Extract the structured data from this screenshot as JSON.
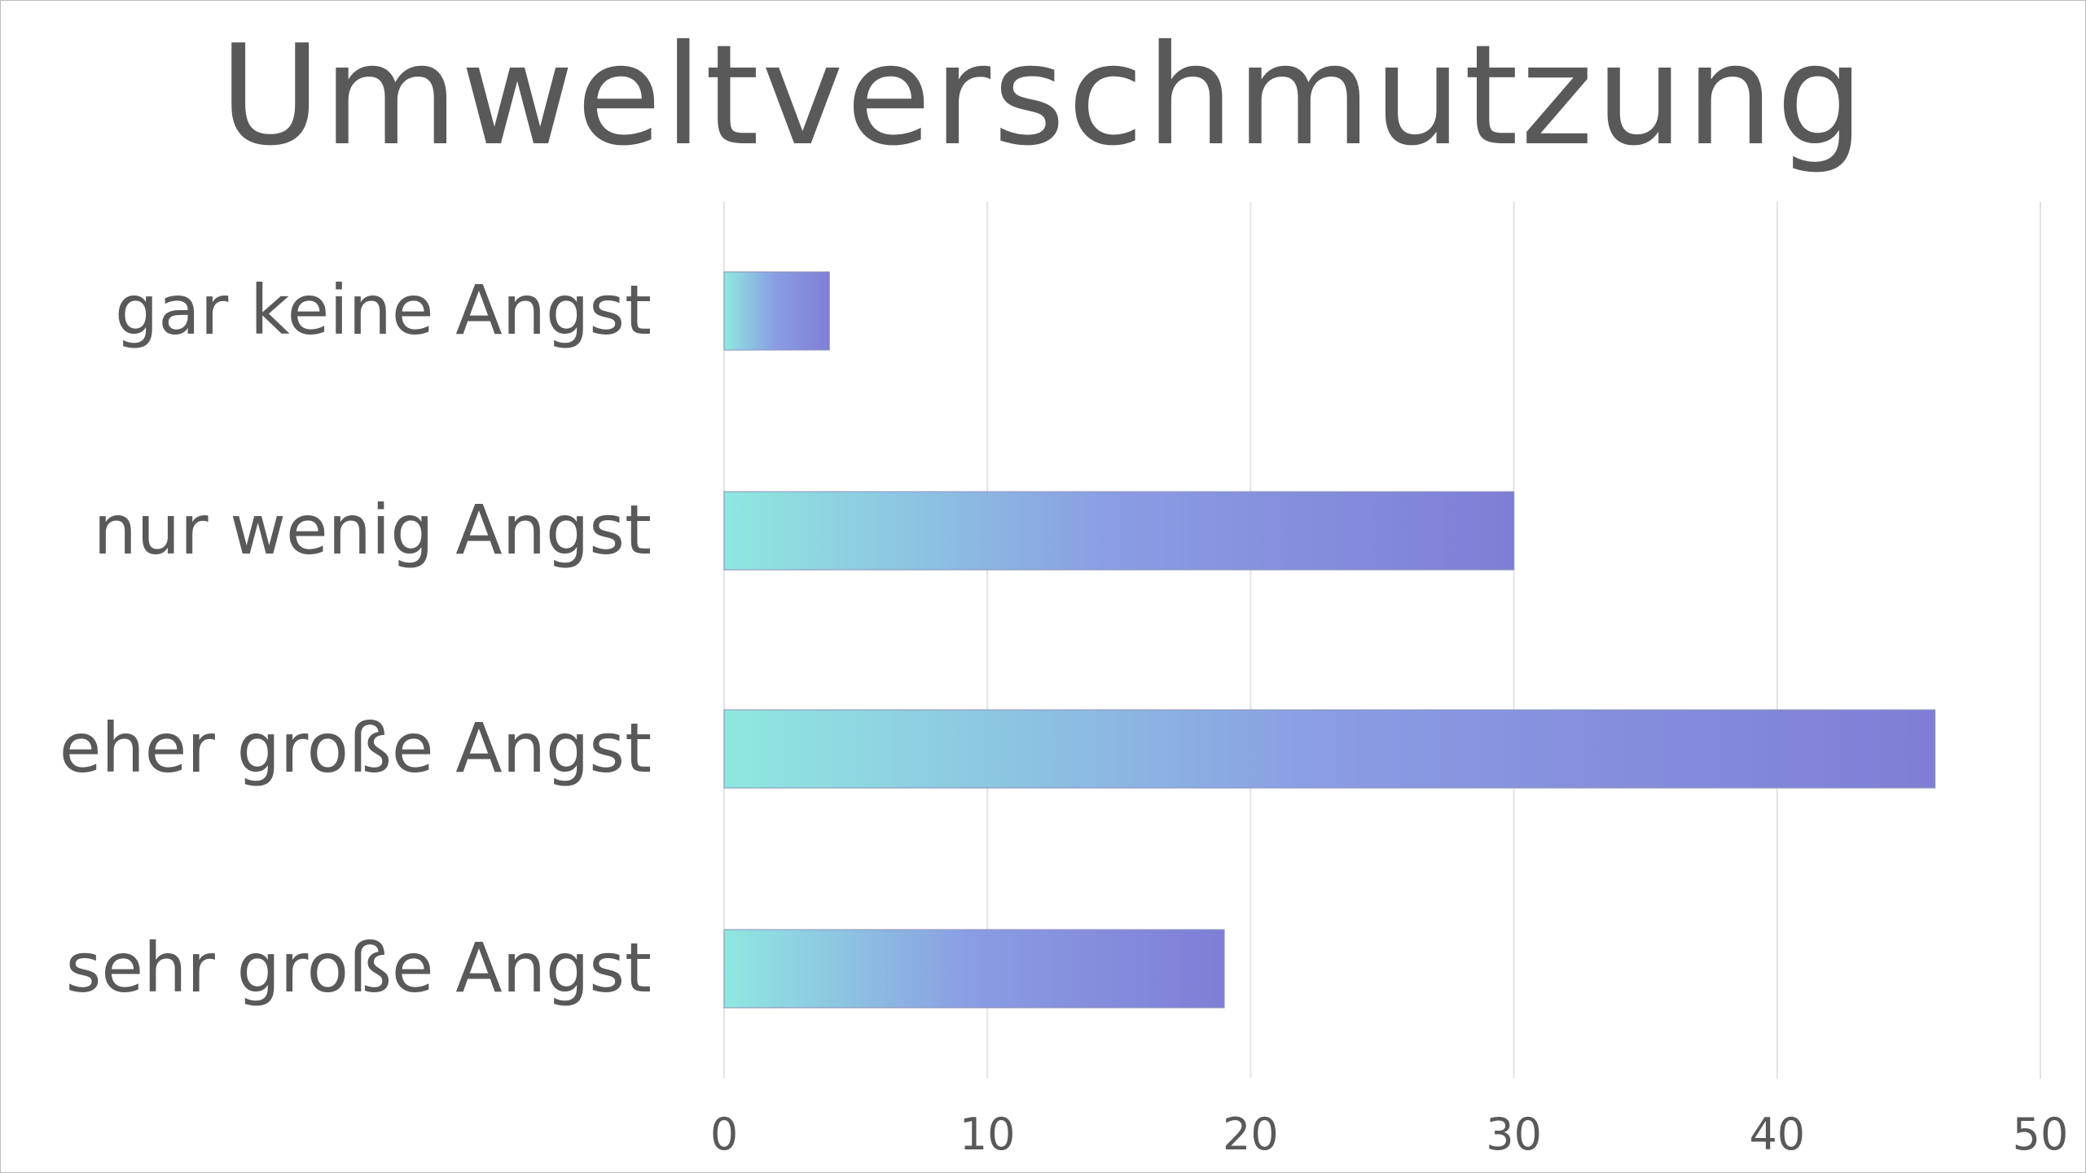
{
  "chart_data": {
    "type": "bar",
    "orientation": "horizontal",
    "title": "Umweltverschmutzung",
    "categories": [
      "gar keine Angst",
      "nur wenig Angst",
      "eher große Angst",
      "sehr große Angst"
    ],
    "values": [
      4,
      30,
      46,
      19
    ],
    "xlim": [
      0,
      50
    ],
    "xticks": [
      "0",
      "10",
      "20",
      "30",
      "40",
      "50"
    ],
    "xlabel": "",
    "ylabel": "",
    "grid": true,
    "legend": "none",
    "bar_gradient": [
      "#8fe8e0",
      "#8a9ce3",
      "#7f7ed6"
    ]
  }
}
